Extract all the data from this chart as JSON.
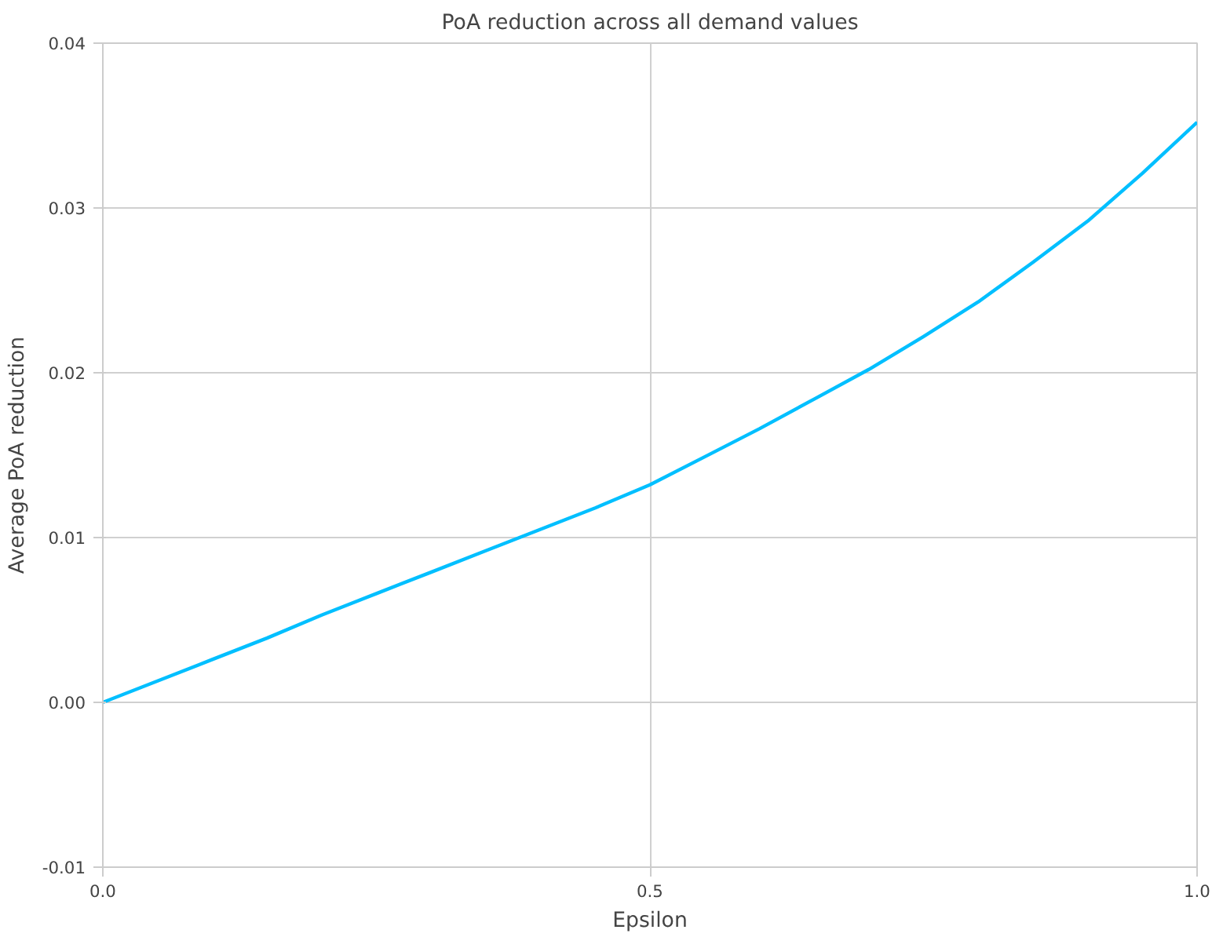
{
  "chart_data": {
    "type": "line",
    "title": "PoA reduction across all demand values",
    "xlabel": "Epsilon",
    "ylabel": "Average PoA reduction",
    "x": [
      0,
      0.05,
      0.1,
      0.15,
      0.2,
      0.25,
      0.3,
      0.35,
      0.4,
      0.45,
      0.5,
      0.55,
      0.6,
      0.65,
      0.7,
      0.75,
      0.8,
      0.85,
      0.9,
      0.95,
      1.0
    ],
    "series": [
      {
        "color": "#00bfff",
        "values": [
          0,
          0.0013,
          0.0026,
          0.0039,
          0.0053,
          0.0066,
          0.0079,
          0.0092,
          0.0105,
          0.0118,
          0.0132,
          0.0149,
          0.0166,
          0.0184,
          0.0202,
          0.0222,
          0.0243,
          0.0267,
          0.0292,
          0.0321,
          0.0352
        ]
      }
    ],
    "xlim": [
      0,
      1
    ],
    "ylim": [
      -0.01,
      0.04
    ],
    "xticks": [
      {
        "value": 0,
        "label": "0.0"
      },
      {
        "value": 0.5,
        "label": "0.5"
      },
      {
        "value": 1,
        "label": "1.0"
      }
    ],
    "yticks": [
      {
        "value": -0.01,
        "label": "-0.01"
      },
      {
        "value": 0,
        "label": "0.00"
      },
      {
        "value": 0.01,
        "label": "0.01"
      },
      {
        "value": 0.02,
        "label": "0.02"
      },
      {
        "value": 0.03,
        "label": "0.03"
      },
      {
        "value": 0.04,
        "label": "0.04"
      }
    ],
    "grid": true,
    "line_style": "solid"
  }
}
